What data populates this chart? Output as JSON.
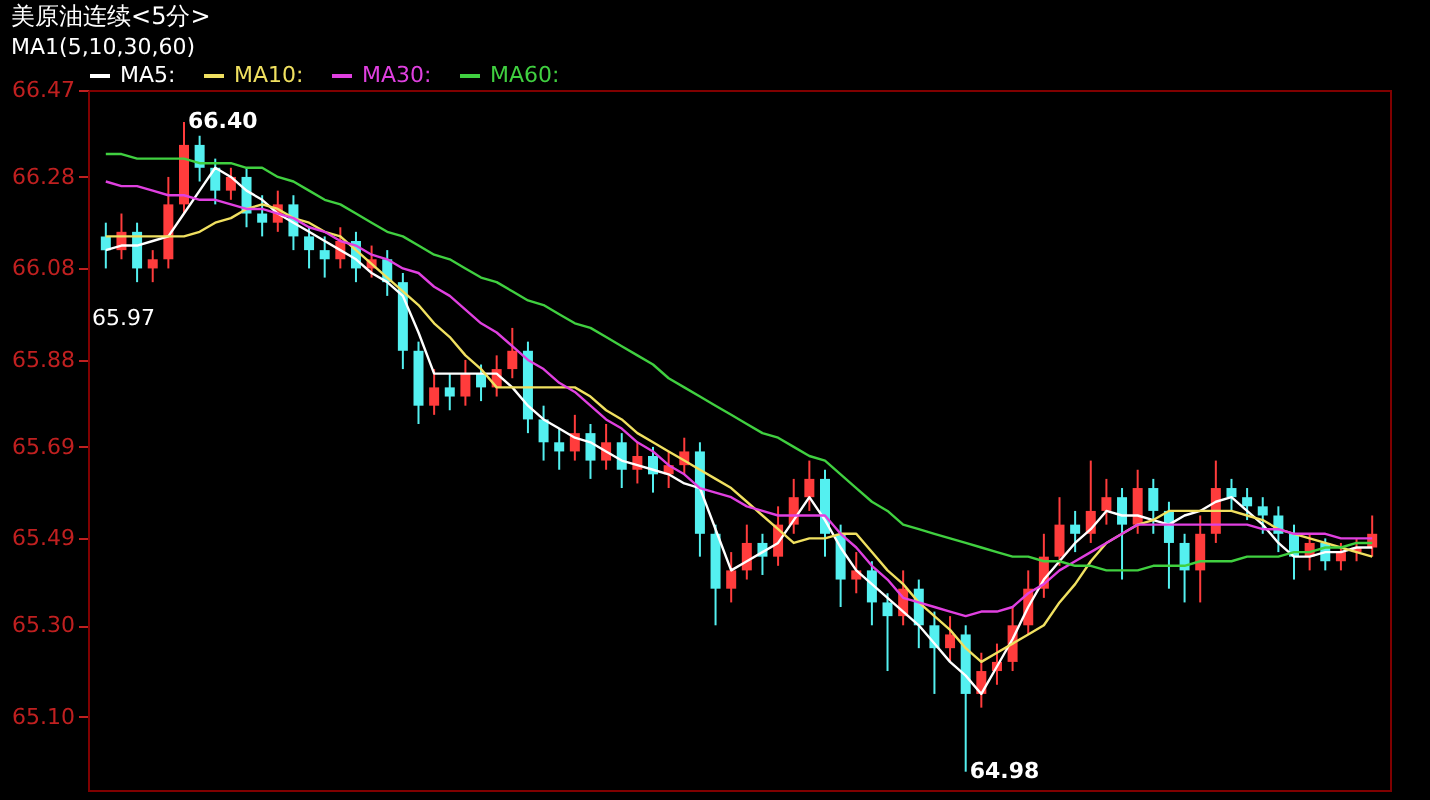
{
  "chart_data": {
    "type": "candlestick",
    "title": "美原油连续<5分>",
    "subtitle": "MA1(5,10,30,60)",
    "categories": [
      null,
      null,
      null,
      null,
      null,
      null,
      null,
      null,
      null,
      null,
      null,
      null,
      null,
      null,
      null,
      null,
      null,
      null,
      null,
      null,
      null,
      null,
      null,
      null,
      null,
      null,
      null,
      null,
      null,
      null,
      null,
      null,
      null,
      null,
      null,
      null,
      null,
      null,
      null,
      null,
      null,
      null,
      null,
      null,
      null,
      null,
      null,
      null,
      null,
      null,
      null,
      null,
      null,
      null,
      null,
      null,
      null,
      null,
      null,
      null,
      null,
      null,
      null,
      null,
      null,
      null,
      null,
      null,
      null,
      null,
      null,
      null,
      null,
      null,
      null,
      null,
      null,
      null,
      null,
      null,
      null,
      null
    ],
    "ohlc": [
      [
        66.15,
        66.18,
        66.08,
        66.12
      ],
      [
        66.12,
        66.2,
        66.1,
        66.16
      ],
      [
        66.16,
        66.18,
        66.05,
        66.08
      ],
      [
        66.08,
        66.12,
        66.05,
        66.1
      ],
      [
        66.1,
        66.28,
        66.08,
        66.22
      ],
      [
        66.22,
        66.4,
        66.2,
        66.35
      ],
      [
        66.35,
        66.37,
        66.27,
        66.3
      ],
      [
        66.3,
        66.32,
        66.22,
        66.25
      ],
      [
        66.25,
        66.3,
        66.23,
        66.28
      ],
      [
        66.28,
        66.3,
        66.17,
        66.2
      ],
      [
        66.2,
        66.24,
        66.15,
        66.18
      ],
      [
        66.18,
        66.25,
        66.16,
        66.22
      ],
      [
        66.22,
        66.24,
        66.12,
        66.15
      ],
      [
        66.15,
        66.17,
        66.08,
        66.12
      ],
      [
        66.12,
        66.15,
        66.06,
        66.1
      ],
      [
        66.1,
        66.17,
        66.08,
        66.14
      ],
      [
        66.14,
        66.16,
        66.05,
        66.08
      ],
      [
        66.08,
        66.13,
        66.06,
        66.1
      ],
      [
        66.1,
        66.12,
        66.02,
        66.05
      ],
      [
        66.05,
        66.07,
        65.86,
        65.9
      ],
      [
        65.9,
        65.92,
        65.74,
        65.78
      ],
      [
        65.78,
        65.86,
        65.76,
        65.82
      ],
      [
        65.82,
        65.85,
        65.77,
        65.8
      ],
      [
        65.8,
        65.88,
        65.78,
        65.85
      ],
      [
        65.85,
        65.87,
        65.79,
        65.82
      ],
      [
        65.82,
        65.89,
        65.8,
        65.86
      ],
      [
        65.86,
        65.95,
        65.84,
        65.9
      ],
      [
        65.9,
        65.92,
        65.72,
        65.75
      ],
      [
        65.75,
        65.78,
        65.66,
        65.7
      ],
      [
        65.7,
        65.73,
        65.64,
        65.68
      ],
      [
        65.68,
        65.76,
        65.66,
        65.72
      ],
      [
        65.72,
        65.74,
        65.62,
        65.66
      ],
      [
        65.66,
        65.74,
        65.64,
        65.7
      ],
      [
        65.7,
        65.72,
        65.6,
        65.64
      ],
      [
        65.64,
        65.7,
        65.61,
        65.67
      ],
      [
        65.67,
        65.69,
        65.59,
        65.63
      ],
      [
        65.63,
        65.68,
        65.6,
        65.65
      ],
      [
        65.65,
        65.71,
        65.63,
        65.68
      ],
      [
        65.68,
        65.7,
        65.45,
        65.5
      ],
      [
        65.5,
        65.52,
        65.3,
        65.38
      ],
      [
        65.38,
        65.46,
        65.35,
        65.42
      ],
      [
        65.42,
        65.52,
        65.4,
        65.48
      ],
      [
        65.48,
        65.5,
        65.41,
        65.45
      ],
      [
        65.45,
        65.56,
        65.43,
        65.52
      ],
      [
        65.52,
        65.62,
        65.5,
        65.58
      ],
      [
        65.58,
        65.66,
        65.55,
        65.62
      ],
      [
        65.62,
        65.64,
        65.45,
        65.5
      ],
      [
        65.5,
        65.52,
        65.34,
        65.4
      ],
      [
        65.4,
        65.46,
        65.37,
        65.42
      ],
      [
        65.42,
        65.44,
        65.3,
        65.35
      ],
      [
        65.35,
        65.37,
        65.2,
        65.32
      ],
      [
        65.32,
        65.42,
        65.3,
        65.38
      ],
      [
        65.38,
        65.4,
        65.25,
        65.3
      ],
      [
        65.3,
        65.33,
        65.15,
        65.25
      ],
      [
        65.25,
        65.32,
        65.22,
        65.28
      ],
      [
        65.28,
        65.3,
        64.98,
        65.15
      ],
      [
        65.15,
        65.24,
        65.12,
        65.2
      ],
      [
        65.2,
        65.26,
        65.17,
        65.22
      ],
      [
        65.22,
        65.34,
        65.2,
        65.3
      ],
      [
        65.3,
        65.42,
        65.28,
        65.38
      ],
      [
        65.38,
        65.5,
        65.36,
        65.45
      ],
      [
        65.45,
        65.58,
        65.43,
        65.52
      ],
      [
        65.52,
        65.55,
        65.46,
        65.5
      ],
      [
        65.5,
        65.66,
        65.48,
        65.55
      ],
      [
        65.55,
        65.62,
        65.52,
        65.58
      ],
      [
        65.58,
        65.6,
        65.4,
        65.52
      ],
      [
        65.52,
        65.64,
        65.5,
        65.6
      ],
      [
        65.6,
        65.62,
        65.5,
        65.55
      ],
      [
        65.55,
        65.57,
        65.38,
        65.48
      ],
      [
        65.48,
        65.5,
        65.35,
        65.42
      ],
      [
        65.42,
        65.54,
        65.35,
        65.5
      ],
      [
        65.5,
        65.66,
        65.48,
        65.6
      ],
      [
        65.6,
        65.62,
        65.55,
        65.58
      ],
      [
        65.58,
        65.6,
        65.53,
        65.56
      ],
      [
        65.56,
        65.58,
        65.5,
        65.54
      ],
      [
        65.54,
        65.56,
        65.46,
        65.5
      ],
      [
        65.5,
        65.52,
        65.4,
        65.45
      ],
      [
        65.45,
        65.5,
        65.42,
        65.48
      ],
      [
        65.48,
        65.49,
        65.42,
        65.44
      ],
      [
        65.44,
        65.48,
        65.42,
        65.46
      ],
      [
        65.46,
        65.49,
        65.44,
        65.47
      ],
      [
        65.47,
        65.54,
        65.45,
        65.5
      ]
    ],
    "colors": [
      "#54f0f0",
      "#ff3c3c",
      "#54f0f0",
      "#ff3c3c",
      "#ff3c3c",
      "#ff3c3c",
      "#54f0f0",
      "#54f0f0",
      "#ff3c3c",
      "#54f0f0",
      "#54f0f0",
      "#ff3c3c",
      "#54f0f0",
      "#54f0f0",
      "#54f0f0",
      "#ff3c3c",
      "#54f0f0",
      "#ff3c3c",
      "#54f0f0",
      "#54f0f0",
      "#54f0f0",
      "#ff3c3c",
      "#54f0f0",
      "#ff3c3c",
      "#54f0f0",
      "#ff3c3c",
      "#ff3c3c",
      "#54f0f0",
      "#54f0f0",
      "#54f0f0",
      "#ff3c3c",
      "#54f0f0",
      "#ff3c3c",
      "#54f0f0",
      "#ff3c3c",
      "#54f0f0",
      "#ff3c3c",
      "#ff3c3c",
      "#54f0f0",
      "#54f0f0",
      "#ff3c3c",
      "#ff3c3c",
      "#54f0f0",
      "#ff3c3c",
      "#ff3c3c",
      "#ff3c3c",
      "#54f0f0",
      "#54f0f0",
      "#ff3c3c",
      "#54f0f0",
      "#54f0f0",
      "#ff3c3c",
      "#54f0f0",
      "#54f0f0",
      "#ff3c3c",
      "#54f0f0",
      "#ff3c3c",
      "#ff3c3c",
      "#ff3c3c",
      "#ff3c3c",
      "#ff3c3c",
      "#ff3c3c",
      "#54f0f0",
      "#ff3c3c",
      "#ff3c3c",
      "#54f0f0",
      "#ff3c3c",
      "#54f0f0",
      "#54f0f0",
      "#54f0f0",
      "#ff3c3c",
      "#ff3c3c",
      "#54f0f0",
      "#54f0f0",
      "#54f0f0",
      "#54f0f0",
      "#54f0f0",
      "#ff3c3c",
      "#54f0f0",
      "#ff3c3c",
      "#ff3c3c",
      "#ff3c3c"
    ],
    "series": [
      {
        "name": "MA5:",
        "color": "#ffffff",
        "type": "line",
        "values": [
          66.12,
          66.13,
          66.13,
          66.14,
          66.15,
          66.2,
          66.25,
          66.3,
          66.28,
          66.25,
          66.23,
          66.2,
          66.18,
          66.16,
          66.14,
          66.12,
          66.1,
          66.07,
          66.05,
          66.02,
          65.94,
          65.85,
          65.85,
          65.85,
          65.85,
          65.85,
          65.82,
          65.78,
          65.75,
          65.73,
          65.71,
          65.7,
          65.68,
          65.66,
          65.65,
          65.64,
          65.63,
          65.61,
          65.6,
          65.51,
          65.42,
          65.44,
          65.46,
          65.48,
          65.53,
          65.58,
          65.53,
          65.47,
          65.42,
          65.39,
          65.36,
          65.33,
          65.3,
          65.26,
          65.22,
          65.19,
          65.15,
          65.21,
          65.27,
          65.34,
          65.4,
          65.44,
          65.48,
          65.51,
          65.55,
          65.54,
          65.54,
          65.53,
          65.52,
          65.54,
          65.55,
          65.57,
          65.58,
          65.55,
          65.52,
          65.48,
          65.45,
          65.45,
          65.46,
          65.46,
          65.47,
          65.47
        ]
      },
      {
        "name": "MA10:",
        "color": "#f0e060",
        "type": "line",
        "values": [
          66.15,
          66.15,
          66.15,
          66.15,
          66.15,
          66.15,
          66.16,
          66.18,
          66.19,
          66.21,
          66.22,
          66.21,
          66.19,
          66.18,
          66.16,
          66.15,
          66.12,
          66.09,
          66.06,
          66.03,
          66.0,
          65.96,
          65.93,
          65.89,
          65.86,
          65.82,
          65.82,
          65.82,
          65.82,
          65.82,
          65.82,
          65.8,
          65.77,
          65.75,
          65.72,
          65.7,
          65.68,
          65.66,
          65.64,
          65.62,
          65.6,
          65.57,
          65.54,
          65.51,
          65.48,
          65.49,
          65.49,
          65.5,
          65.5,
          65.46,
          65.42,
          65.39,
          65.35,
          65.32,
          65.29,
          65.25,
          65.22,
          65.24,
          65.26,
          65.28,
          65.3,
          65.35,
          65.39,
          65.44,
          65.48,
          65.5,
          65.52,
          65.53,
          65.55,
          65.55,
          65.55,
          65.55,
          65.55,
          65.54,
          65.53,
          65.51,
          65.5,
          65.49,
          65.48,
          65.47,
          65.46,
          65.45
        ]
      },
      {
        "name": "MA30:",
        "color": "#e040e0",
        "type": "line",
        "values": [
          66.27,
          66.26,
          66.26,
          66.25,
          66.24,
          66.24,
          66.23,
          66.23,
          66.22,
          66.21,
          66.21,
          66.2,
          66.19,
          66.17,
          66.16,
          66.14,
          66.13,
          66.11,
          66.1,
          66.08,
          66.07,
          66.04,
          66.02,
          65.99,
          65.96,
          65.94,
          65.91,
          65.88,
          65.86,
          65.83,
          65.81,
          65.78,
          65.75,
          65.73,
          65.7,
          65.68,
          65.65,
          65.63,
          65.6,
          65.59,
          65.58,
          65.56,
          65.55,
          65.54,
          65.54,
          65.54,
          65.54,
          65.5,
          65.47,
          65.43,
          65.4,
          65.36,
          65.35,
          65.34,
          65.33,
          65.32,
          65.33,
          65.33,
          65.34,
          65.37,
          65.39,
          65.42,
          65.44,
          65.46,
          65.48,
          65.5,
          65.52,
          65.52,
          65.52,
          65.52,
          65.52,
          65.52,
          65.52,
          65.52,
          65.51,
          65.51,
          65.5,
          65.5,
          65.5,
          65.49,
          65.49,
          65.49
        ]
      },
      {
        "name": "MA60:",
        "color": "#40d040",
        "type": "line",
        "values": [
          66.33,
          66.33,
          66.32,
          66.32,
          66.32,
          66.32,
          66.31,
          66.31,
          66.31,
          66.3,
          66.3,
          66.28,
          66.27,
          66.25,
          66.23,
          66.22,
          66.2,
          66.18,
          66.16,
          66.15,
          66.13,
          66.11,
          66.1,
          66.08,
          66.06,
          66.05,
          66.03,
          66.01,
          66.0,
          65.98,
          65.96,
          65.95,
          65.93,
          65.91,
          65.89,
          65.87,
          65.84,
          65.82,
          65.8,
          65.78,
          65.76,
          65.74,
          65.72,
          65.71,
          65.69,
          65.67,
          65.66,
          65.63,
          65.6,
          65.57,
          65.55,
          65.52,
          65.51,
          65.5,
          65.49,
          65.48,
          65.47,
          65.46,
          65.45,
          65.45,
          65.44,
          65.44,
          65.43,
          65.43,
          65.42,
          65.42,
          65.42,
          65.43,
          65.43,
          65.43,
          65.44,
          65.44,
          65.44,
          65.45,
          65.45,
          65.45,
          65.46,
          65.46,
          65.47,
          65.47,
          65.48,
          65.48
        ]
      }
    ],
    "annotations": [
      "66.40",
      "64.98",
      "65.97"
    ],
    "ylim": [
      64.94,
      66.47
    ],
    "yticks": [
      66.47,
      66.28,
      66.08,
      65.88,
      65.69,
      65.49,
      {
        "value": 65.3,
        "label": "65.30"
      },
      {
        "value": 65.1,
        "label": "65.10"
      }
    ],
    "tick_labels": "y",
    "legend": "top left",
    "line_style": "solid",
    "marker": "none"
  }
}
